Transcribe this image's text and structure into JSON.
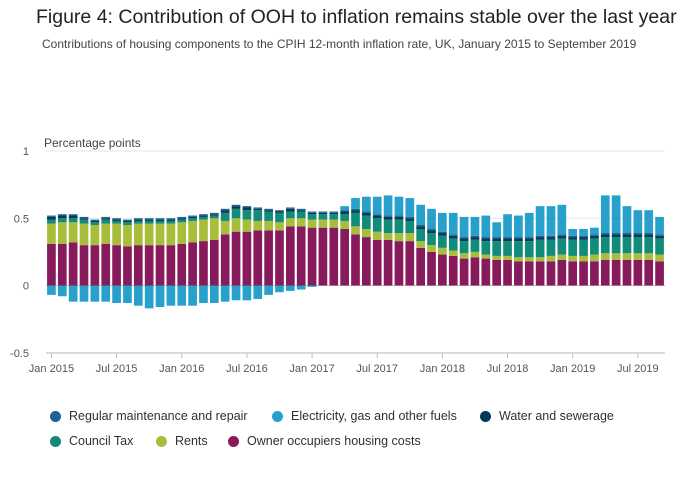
{
  "title": "Figure 4: Contribution of OOH to inflation remains stable over the last year",
  "subtitle": "Contributions of housing components to the CPIH 12-month inflation rate, UK, January 2015 to September 2019",
  "colors": {
    "regular_maintenance": "#206095",
    "electricity": "#27a0cc",
    "water": "#003c57",
    "council_tax": "#118c7b",
    "rents": "#a8bd3a",
    "ooh": "#871a5b"
  },
  "legend": [
    {
      "key": "regular_maintenance",
      "label": "Regular maintenance and repair"
    },
    {
      "key": "electricity",
      "label": "Electricity, gas and other fuels"
    },
    {
      "key": "water",
      "label": "Water and sewerage"
    },
    {
      "key": "council_tax",
      "label": "Council Tax"
    },
    {
      "key": "rents",
      "label": "Rents"
    },
    {
      "key": "ooh",
      "label": "Owner occupiers housing costs"
    }
  ],
  "chart_data": {
    "type": "bar",
    "stacked": true,
    "ylabel": "Percentage points",
    "ylim": [
      -0.5,
      1
    ],
    "yticks": [
      -0.5,
      0,
      0.5,
      1
    ],
    "grid": true,
    "legend_position": "bottom",
    "x_tick_labels": [
      "Jan 2015",
      "Jul 2015",
      "Jan 2016",
      "Jul 2016",
      "Jan 2017",
      "Jul 2017",
      "Jan 2018",
      "Jul 2018",
      "Jan 2019",
      "Jul 2019"
    ],
    "x_tick_index": [
      0,
      6,
      12,
      18,
      24,
      30,
      36,
      42,
      48,
      54
    ],
    "categories": [
      "Jan 2015",
      "Feb 2015",
      "Mar 2015",
      "Apr 2015",
      "May 2015",
      "Jun 2015",
      "Jul 2015",
      "Aug 2015",
      "Sep 2015",
      "Oct 2015",
      "Nov 2015",
      "Dec 2015",
      "Jan 2016",
      "Feb 2016",
      "Mar 2016",
      "Apr 2016",
      "May 2016",
      "Jun 2016",
      "Jul 2016",
      "Aug 2016",
      "Sep 2016",
      "Oct 2016",
      "Nov 2016",
      "Dec 2016",
      "Jan 2017",
      "Feb 2017",
      "Mar 2017",
      "Apr 2017",
      "May 2017",
      "Jun 2017",
      "Jul 2017",
      "Aug 2017",
      "Sep 2017",
      "Oct 2017",
      "Nov 2017",
      "Dec 2017",
      "Jan 2018",
      "Feb 2018",
      "Mar 2018",
      "Apr 2018",
      "May 2018",
      "Jun 2018",
      "Jul 2018",
      "Aug 2018",
      "Sep 2018",
      "Oct 2018",
      "Nov 2018",
      "Dec 2018",
      "Jan 2019",
      "Feb 2019",
      "Mar 2019",
      "Apr 2019",
      "May 2019",
      "Jun 2019",
      "Jul 2019",
      "Aug 2019",
      "Sep 2019"
    ],
    "series": [
      {
        "name": "Owner occupiers housing costs",
        "key": "ooh",
        "values": [
          0.31,
          0.31,
          0.32,
          0.3,
          0.3,
          0.31,
          0.3,
          0.29,
          0.3,
          0.3,
          0.3,
          0.3,
          0.31,
          0.32,
          0.33,
          0.34,
          0.38,
          0.4,
          0.4,
          0.41,
          0.41,
          0.41,
          0.44,
          0.44,
          0.43,
          0.43,
          0.43,
          0.42,
          0.38,
          0.36,
          0.34,
          0.34,
          0.33,
          0.33,
          0.28,
          0.25,
          0.23,
          0.22,
          0.2,
          0.21,
          0.2,
          0.19,
          0.19,
          0.18,
          0.18,
          0.18,
          0.18,
          0.19,
          0.18,
          0.18,
          0.18,
          0.19,
          0.19,
          0.19,
          0.19,
          0.19,
          0.18
        ]
      },
      {
        "name": "Rents",
        "key": "rents",
        "values": [
          0.15,
          0.16,
          0.15,
          0.16,
          0.15,
          0.15,
          0.16,
          0.16,
          0.16,
          0.16,
          0.16,
          0.16,
          0.16,
          0.16,
          0.16,
          0.16,
          0.1,
          0.1,
          0.09,
          0.07,
          0.07,
          0.06,
          0.06,
          0.06,
          0.06,
          0.06,
          0.06,
          0.06,
          0.06,
          0.06,
          0.06,
          0.05,
          0.06,
          0.06,
          0.05,
          0.05,
          0.05,
          0.04,
          0.04,
          0.04,
          0.03,
          0.03,
          0.03,
          0.03,
          0.03,
          0.03,
          0.04,
          0.04,
          0.04,
          0.04,
          0.05,
          0.05,
          0.05,
          0.05,
          0.05,
          0.05,
          0.05
        ]
      },
      {
        "name": "Council Tax",
        "key": "council_tax",
        "values": [
          0.03,
          0.03,
          0.03,
          0.03,
          0.02,
          0.03,
          0.02,
          0.02,
          0.02,
          0.02,
          0.02,
          0.02,
          0.02,
          0.02,
          0.02,
          0.02,
          0.06,
          0.07,
          0.07,
          0.08,
          0.07,
          0.07,
          0.05,
          0.05,
          0.04,
          0.04,
          0.04,
          0.05,
          0.1,
          0.1,
          0.1,
          0.1,
          0.1,
          0.09,
          0.09,
          0.09,
          0.09,
          0.09,
          0.09,
          0.09,
          0.1,
          0.11,
          0.11,
          0.12,
          0.12,
          0.13,
          0.12,
          0.12,
          0.12,
          0.12,
          0.12,
          0.12,
          0.12,
          0.12,
          0.12,
          0.12,
          0.12
        ]
      },
      {
        "name": "Water and sewerage",
        "key": "water",
        "values": [
          0.02,
          0.02,
          0.02,
          0.01,
          0.01,
          0.01,
          0.01,
          0.01,
          0.01,
          0.01,
          0.01,
          0.01,
          0.01,
          0.01,
          0.01,
          0.01,
          0.02,
          0.02,
          0.02,
          0.01,
          0.01,
          0.01,
          0.02,
          0.01,
          0.01,
          0.01,
          0.01,
          0.02,
          0.02,
          0.02,
          0.02,
          0.02,
          0.02,
          0.02,
          0.02,
          0.02,
          0.02,
          0.02,
          0.02,
          0.02,
          0.02,
          0.02,
          0.02,
          0.02,
          0.02,
          0.02,
          0.02,
          0.02,
          0.02,
          0.02,
          0.02,
          0.02,
          0.02,
          0.02,
          0.02,
          0.02,
          0.02
        ]
      },
      {
        "name": "Regular maintenance and repair",
        "key": "regular_maintenance",
        "values": [
          0.01,
          0.01,
          0.01,
          0.01,
          0.01,
          0.01,
          0.01,
          0.01,
          0.01,
          0.01,
          0.01,
          0.01,
          0.01,
          0.01,
          0.01,
          0.01,
          0.01,
          0.01,
          0.01,
          0.01,
          0.01,
          0.01,
          0.01,
          0.01,
          0.01,
          0.01,
          0.01,
          0.01,
          0.01,
          0.01,
          0.01,
          0.01,
          0.01,
          0.01,
          0.01,
          0.01,
          0.01,
          0.01,
          0.01,
          0.01,
          0.01,
          0.01,
          0.01,
          0.01,
          0.01,
          0.01,
          0.01,
          0.01,
          0.01,
          0.01,
          0.01,
          0.01,
          0.01,
          0.01,
          0.01,
          0.01,
          0.01
        ]
      },
      {
        "name": "Electricity, gas and other fuels",
        "key": "electricity",
        "values": [
          -0.07,
          -0.08,
          -0.12,
          -0.12,
          -0.12,
          -0.12,
          -0.13,
          -0.13,
          -0.15,
          -0.17,
          -0.16,
          -0.15,
          -0.15,
          -0.15,
          -0.13,
          -0.13,
          -0.12,
          -0.11,
          -0.11,
          -0.1,
          -0.07,
          -0.05,
          -0.04,
          -0.03,
          -0.01,
          0.0,
          0.0,
          0.03,
          0.08,
          0.11,
          0.13,
          0.15,
          0.14,
          0.14,
          0.15,
          0.15,
          0.14,
          0.16,
          0.15,
          0.14,
          0.16,
          0.11,
          0.17,
          0.16,
          0.18,
          0.22,
          0.22,
          0.22,
          0.05,
          0.05,
          0.05,
          0.28,
          0.28,
          0.2,
          0.17,
          0.17,
          0.13
        ]
      }
    ]
  }
}
